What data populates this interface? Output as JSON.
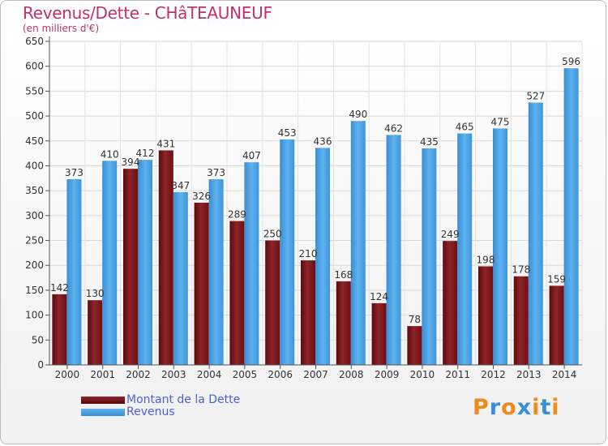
{
  "header": {
    "title": "Revenus/Dette - CHâTEAUNEUF",
    "subtitle": "(en milliers d'€)"
  },
  "colors": {
    "debt": "#7a1418",
    "revenue": "#4aa3e6",
    "title": "#c0306a",
    "legend_text": "#4a62d8"
  },
  "chart_data": {
    "type": "bar",
    "title": "Revenus/Dette - CHâTEAUNEUF",
    "subtitle": "(en milliers d'€)",
    "xlabel": "",
    "ylabel": "",
    "ylim": [
      0,
      650
    ],
    "y_ticks": [
      0,
      50,
      100,
      150,
      200,
      250,
      300,
      350,
      400,
      450,
      500,
      550,
      600,
      650
    ],
    "grid": true,
    "legend_position": "bottom-left",
    "categories": [
      "2000",
      "2001",
      "2002",
      "2003",
      "2004",
      "2005",
      "2006",
      "2007",
      "2008",
      "2009",
      "2010",
      "2011",
      "2012",
      "2013",
      "2014"
    ],
    "series": [
      {
        "name": "Montant de la Dette",
        "values": [
          142,
          130,
          394,
          431,
          326,
          289,
          250,
          210,
          168,
          124,
          78,
          249,
          198,
          178,
          159
        ]
      },
      {
        "name": "Revenus",
        "values": [
          373,
          410,
          412,
          347,
          373,
          407,
          453,
          436,
          490,
          462,
          435,
          465,
          475,
          527,
          596
        ]
      }
    ]
  },
  "legend": {
    "items": [
      {
        "label": "Montant de la Dette"
      },
      {
        "label": "Revenus"
      }
    ]
  },
  "logo": {
    "text": "Proxiti",
    "letter_colors": [
      "#f08a1c",
      "#3a8fd8",
      "#f08a1c",
      "#3a8fd8",
      "#f08a1c",
      "#3a8fd8",
      "#f08a1c"
    ]
  }
}
